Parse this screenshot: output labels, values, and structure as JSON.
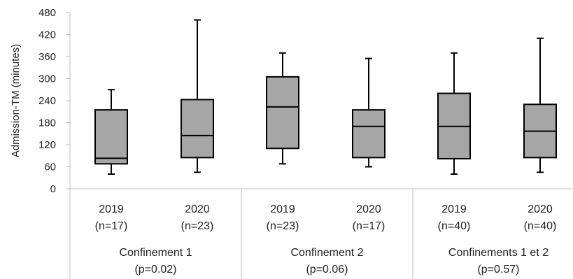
{
  "chart_data": {
    "type": "boxplot",
    "ylabel": "Admission-TM (minutes)",
    "ylim": [
      0,
      480
    ],
    "yticks": [
      0,
      60,
      120,
      180,
      240,
      300,
      360,
      420,
      480
    ],
    "grid": false,
    "box_fill": "#a6a6a6",
    "groups": [
      {
        "label_line1": "Confinement 1",
        "label_line2": "(p=0.02)",
        "boxes": [
          {
            "year": "2019",
            "n": "(n=17)",
            "min": 40,
            "q1": 68,
            "median": 83,
            "q3": 215,
            "max": 270
          },
          {
            "year": "2020",
            "n": "(n=23)",
            "min": 45,
            "q1": 85,
            "median": 145,
            "q3": 243,
            "max": 460
          }
        ]
      },
      {
        "label_line1": "Confinement 2",
        "label_line2": "(p=0.06)",
        "boxes": [
          {
            "year": "2019",
            "n": "(n=23)",
            "min": 68,
            "q1": 110,
            "median": 223,
            "q3": 305,
            "max": 370
          },
          {
            "year": "2020",
            "n": "(n=17)",
            "min": 60,
            "q1": 85,
            "median": 170,
            "q3": 215,
            "max": 355
          }
        ]
      },
      {
        "label_line1": "Confinements 1 et 2",
        "label_line2": "(p=0.57)",
        "boxes": [
          {
            "year": "2019",
            "n": "(n=40)",
            "min": 40,
            "q1": 82,
            "median": 170,
            "q3": 260,
            "max": 370
          },
          {
            "year": "2020",
            "n": "(n=40)",
            "min": 45,
            "q1": 85,
            "median": 157,
            "q3": 230,
            "max": 410
          }
        ]
      }
    ]
  }
}
